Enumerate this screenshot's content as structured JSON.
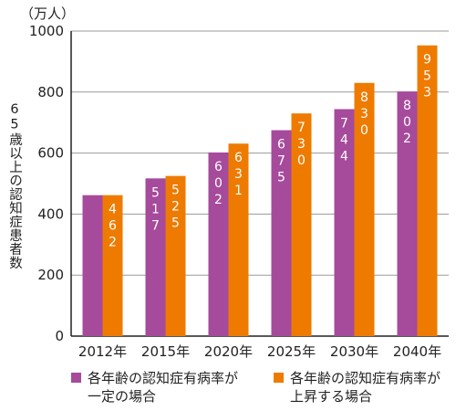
{
  "chart_data": {
    "type": "bar",
    "unit_label": "（万人）",
    "ylabel": "65歳以上の認知症患者数",
    "ylim": [
      0,
      1000
    ],
    "yticks": [
      0,
      200,
      400,
      600,
      800,
      1000
    ],
    "grid": true,
    "categories": [
      "2012年",
      "2015年",
      "2020年",
      "2025年",
      "2030年",
      "2040年"
    ],
    "series": [
      {
        "name": "各年齢の認知症有病率が\n一定の場合",
        "color": "#a64a9b",
        "values": [
          462,
          517,
          602,
          675,
          744,
          802
        ],
        "labels": [
          "",
          "517",
          "602",
          "675",
          "744",
          "802"
        ]
      },
      {
        "name": "各年齢の認知症有病率が\n上昇する場合",
        "color": "#ee7b00",
        "values": [
          462,
          525,
          631,
          730,
          830,
          953
        ],
        "labels": [
          "462",
          "525",
          "631",
          "730",
          "830",
          "953"
        ]
      }
    ]
  }
}
